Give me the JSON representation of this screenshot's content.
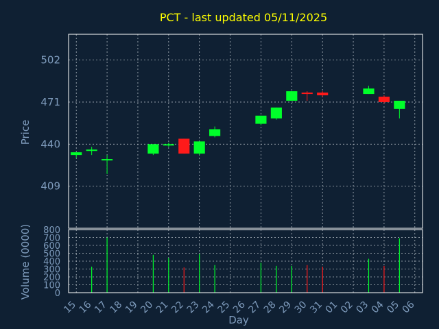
{
  "colors": {
    "background": "#0f2033",
    "frame": "#ffffff",
    "grid": "#b0b8c0",
    "up": "#00ff2a",
    "down": "#ff1a1a",
    "title": "#ffff00",
    "text": "#7f9cbd"
  },
  "chart_data": [
    {
      "type": "candlestick",
      "title": "PCT - last updated 05/11/2025",
      "ylabel": "Price",
      "ylim": [
        378,
        521
      ],
      "yticks": [
        409,
        440,
        471,
        502
      ],
      "grid": true,
      "x": [
        "15",
        "16",
        "17",
        "18",
        "19",
        "20",
        "21",
        "22",
        "23",
        "24",
        "25",
        "26",
        "27",
        "28",
        "29",
        "30",
        "31",
        "01",
        "02",
        "03",
        "04",
        "05",
        "06"
      ],
      "candles": [
        {
          "x": "15",
          "open": 432,
          "high": 434,
          "low": 430,
          "close": 434
        },
        {
          "x": "16",
          "open": 435,
          "high": 438,
          "low": 432,
          "close": 436
        },
        {
          "x": "17",
          "open": 428,
          "high": 432,
          "low": 418,
          "close": 429
        },
        {
          "x": "20",
          "open": 433,
          "high": 440,
          "low": 432,
          "close": 440
        },
        {
          "x": "21",
          "open": 439,
          "high": 441,
          "low": 438,
          "close": 440
        },
        {
          "x": "22",
          "open": 444,
          "high": 444,
          "low": 433,
          "close": 433
        },
        {
          "x": "23",
          "open": 433,
          "high": 442,
          "low": 432,
          "close": 442
        },
        {
          "x": "24",
          "open": 446,
          "high": 453,
          "low": 445,
          "close": 451
        },
        {
          "x": "27",
          "open": 455,
          "high": 461,
          "low": 454,
          "close": 461
        },
        {
          "x": "28",
          "open": 459,
          "high": 467,
          "low": 458,
          "close": 467
        },
        {
          "x": "29",
          "open": 472,
          "high": 479,
          "low": 472,
          "close": 479
        },
        {
          "x": "30",
          "open": 478,
          "high": 479,
          "low": 472,
          "close": 477
        },
        {
          "x": "31",
          "open": 478,
          "high": 479,
          "low": 475,
          "close": 476
        },
        {
          "x": "03",
          "open": 477,
          "high": 483,
          "low": 477,
          "close": 481
        },
        {
          "x": "04",
          "open": 475,
          "high": 476,
          "low": 470,
          "close": 471
        },
        {
          "x": "05",
          "open": 466,
          "high": 472,
          "low": 459,
          "close": 472
        }
      ]
    },
    {
      "type": "bar",
      "ylabel": "Volume (0000)",
      "xlabel": "Day",
      "ylim": [
        0,
        800
      ],
      "yticks": [
        0,
        100,
        200,
        300,
        400,
        500,
        600,
        700,
        800
      ],
      "grid": true,
      "categories": [
        "15",
        "16",
        "17",
        "18",
        "19",
        "20",
        "21",
        "22",
        "23",
        "24",
        "25",
        "26",
        "27",
        "28",
        "29",
        "30",
        "31",
        "01",
        "02",
        "03",
        "04",
        "05",
        "06"
      ],
      "values": [
        0,
        330,
        700,
        0,
        0,
        480,
        440,
        320,
        490,
        350,
        0,
        0,
        380,
        340,
        340,
        350,
        330,
        0,
        0,
        430,
        340,
        690,
        0
      ],
      "directions": [
        "up",
        "up",
        "up",
        "",
        "",
        "up",
        "up",
        "down",
        "up",
        "up",
        "",
        "",
        "up",
        "up",
        "up",
        "down",
        "down",
        "",
        "",
        "up",
        "down",
        "up",
        ""
      ]
    }
  ]
}
